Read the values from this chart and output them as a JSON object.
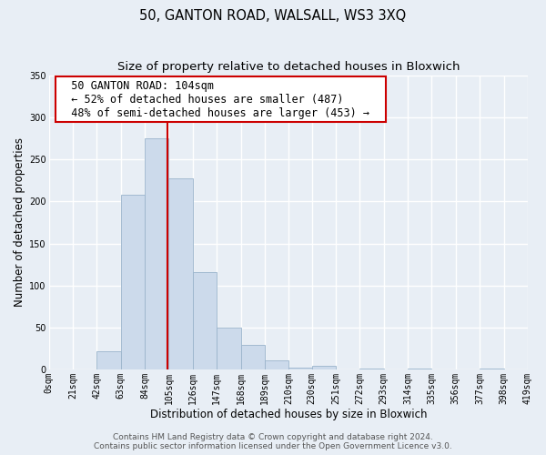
{
  "title": "50, GANTON ROAD, WALSALL, WS3 3XQ",
  "subtitle": "Size of property relative to detached houses in Bloxwich",
  "xlabel": "Distribution of detached houses by size in Bloxwich",
  "ylabel": "Number of detached properties",
  "bar_edges": [
    0,
    21,
    42,
    63,
    84,
    105,
    126,
    147,
    168,
    189,
    210,
    230,
    251,
    272,
    293,
    314,
    335,
    356,
    377,
    398,
    419
  ],
  "bar_heights": [
    0,
    0,
    22,
    208,
    275,
    228,
    116,
    50,
    29,
    11,
    2,
    4,
    0,
    1,
    0,
    1,
    0,
    0,
    1,
    0
  ],
  "bar_color": "#ccdaeb",
  "bar_edge_color": "#9ab4cc",
  "vline_x": 104,
  "vline_color": "#cc0000",
  "ylim": [
    0,
    350
  ],
  "xlim": [
    0,
    419
  ],
  "tick_positions": [
    0,
    21,
    42,
    63,
    84,
    105,
    126,
    147,
    168,
    189,
    210,
    230,
    251,
    272,
    293,
    314,
    335,
    356,
    377,
    398,
    419
  ],
  "tick_labels": [
    "0sqm",
    "21sqm",
    "42sqm",
    "63sqm",
    "84sqm",
    "105sqm",
    "126sqm",
    "147sqm",
    "168sqm",
    "189sqm",
    "210sqm",
    "230sqm",
    "251sqm",
    "272sqm",
    "293sqm",
    "314sqm",
    "335sqm",
    "356sqm",
    "377sqm",
    "398sqm",
    "419sqm"
  ],
  "annotation_text": "  50 GANTON ROAD: 104sqm  \n  ← 52% of detached houses are smaller (487)  \n  48% of semi-detached houses are larger (453) →  ",
  "annotation_box_facecolor": "#ffffff",
  "annotation_box_edgecolor": "#cc0000",
  "footer1": "Contains HM Land Registry data © Crown copyright and database right 2024.",
  "footer2": "Contains public sector information licensed under the Open Government Licence v3.0.",
  "bg_color": "#e8eef5",
  "plot_bg_color": "#e8eef5",
  "grid_color": "#ffffff",
  "title_fontsize": 10.5,
  "subtitle_fontsize": 9.5,
  "ylabel_fontsize": 8.5,
  "xlabel_fontsize": 8.5,
  "tick_fontsize": 7,
  "annotation_fontsize": 8.5,
  "footer_fontsize": 6.5,
  "yticks": [
    0,
    50,
    100,
    150,
    200,
    250,
    300,
    350
  ]
}
